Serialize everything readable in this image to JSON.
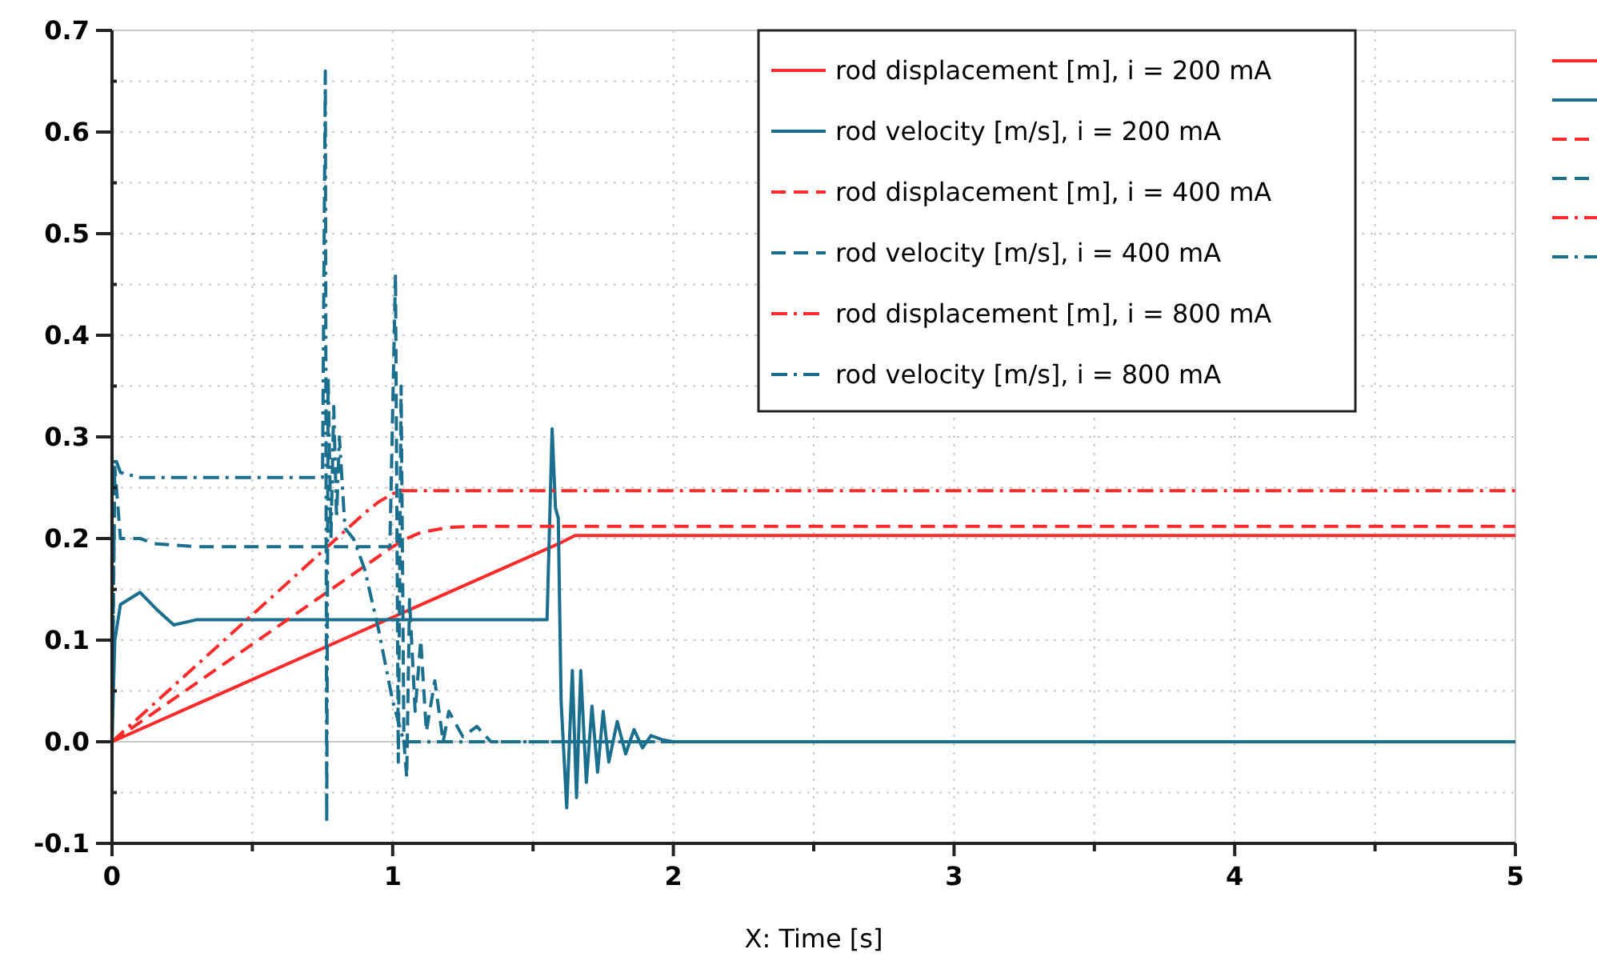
{
  "chart_data": {
    "type": "line",
    "xlabel": "X: Time [s]",
    "xlim": [
      0,
      5
    ],
    "ylim": [
      -0.1,
      0.7
    ],
    "xticks": [
      0,
      {
        "value": 0.5,
        "label": null
      },
      1,
      {
        "value": 1.5,
        "label": null
      },
      2,
      {
        "value": 2.5,
        "label": null
      },
      3,
      {
        "value": 3.5,
        "label": null
      },
      4,
      {
        "value": 4.5,
        "label": null
      },
      5
    ],
    "yticks": [
      -0.1,
      {
        "value": -0.05,
        "label": null
      },
      {
        "value": 0,
        "label": "0.0"
      },
      {
        "value": 0.05,
        "label": null
      },
      0.1,
      {
        "value": 0.15,
        "label": null
      },
      0.2,
      {
        "value": 0.25,
        "label": null
      },
      0.3,
      {
        "value": 0.35,
        "label": null
      },
      0.4,
      {
        "value": 0.45,
        "label": null
      },
      0.5,
      {
        "value": 0.55,
        "label": null
      },
      0.6,
      {
        "value": 0.65,
        "label": null
      },
      0.7
    ],
    "grid": true,
    "legend": "top right",
    "series": [
      {
        "name": "rod displacement [m], i = 200 mA",
        "color": "#ff2a2a",
        "line_style": "solid",
        "x": [
          0,
          1.6,
          1.65,
          5
        ],
        "values": [
          0,
          0.196,
          0.203,
          0.203
        ]
      },
      {
        "name": "rod velocity [m/s], i = 200 mA",
        "color": "#1a6e8e",
        "line_style": "solid",
        "x": [
          0,
          0.01,
          0.03,
          0.1,
          0.16,
          0.22,
          0.3,
          1.55,
          1.568,
          1.58,
          1.59,
          1.6,
          1.62,
          1.64,
          1.655,
          1.67,
          1.69,
          1.71,
          1.73,
          1.75,
          1.77,
          1.8,
          1.83,
          1.86,
          1.89,
          1.92,
          1.96,
          2.0,
          5
        ],
        "values": [
          0,
          0.1,
          0.135,
          0.147,
          0.13,
          0.115,
          0.12,
          0.12,
          0.308,
          0.23,
          0.22,
          0.04,
          -0.065,
          0.07,
          -0.055,
          0.07,
          -0.04,
          0.035,
          -0.03,
          0.03,
          -0.02,
          0.02,
          -0.012,
          0.012,
          -0.006,
          0.006,
          0.002,
          0,
          0
        ]
      },
      {
        "name": "rod displacement [m], i = 400 mA",
        "color": "#ff2a2a",
        "line_style": "dashed",
        "x": [
          0,
          1.0,
          1.05,
          1.1,
          1.2,
          1.3,
          5
        ],
        "values": [
          0,
          0.192,
          0.2,
          0.206,
          0.211,
          0.212,
          0.212
        ]
      },
      {
        "name": "rod velocity [m/s], i = 400 mA",
        "color": "#1a6e8e",
        "line_style": "dashed",
        "x": [
          0,
          0.01,
          0.03,
          0.1,
          0.15,
          0.3,
          0.99,
          1.01,
          1.02,
          1.03,
          1.04,
          1.05,
          1.06,
          1.08,
          1.1,
          1.12,
          1.15,
          1.18,
          1.2,
          1.25,
          1.3,
          1.35,
          1.45,
          5
        ],
        "values": [
          0,
          0.27,
          0.2,
          0.2,
          0.195,
          0.192,
          0.192,
          0.46,
          -0.02,
          0.35,
          0.0,
          -0.035,
          0.14,
          0.03,
          0.1,
          0.01,
          0.06,
          0.0,
          0.03,
          0.005,
          0.015,
          0.0,
          0,
          0
        ]
      },
      {
        "name": "rod displacement [m], i = 800 mA",
        "color": "#ff2a2a",
        "line_style": "dashdot",
        "x": [
          0,
          0.9,
          0.95,
          1.0,
          1.03,
          5
        ],
        "values": [
          0,
          0.225,
          0.236,
          0.244,
          0.247,
          0.247
        ]
      },
      {
        "name": "rod velocity [m/s], i = 800 mA",
        "color": "#1a6e8e",
        "line_style": "dashdot",
        "x": [
          0,
          0.01,
          0.03,
          0.1,
          0.75,
          0.76,
          0.765,
          0.77,
          0.78,
          0.79,
          0.8,
          0.81,
          0.83,
          0.86,
          0.9,
          0.95,
          1.0,
          1.04,
          1.1,
          5
        ],
        "values": [
          0,
          0.28,
          0.265,
          0.26,
          0.26,
          0.66,
          -0.08,
          0.36,
          0.2,
          0.33,
          0.22,
          0.3,
          0.21,
          0.2,
          0.17,
          0.11,
          0.04,
          0.0,
          0,
          0
        ]
      }
    ]
  }
}
